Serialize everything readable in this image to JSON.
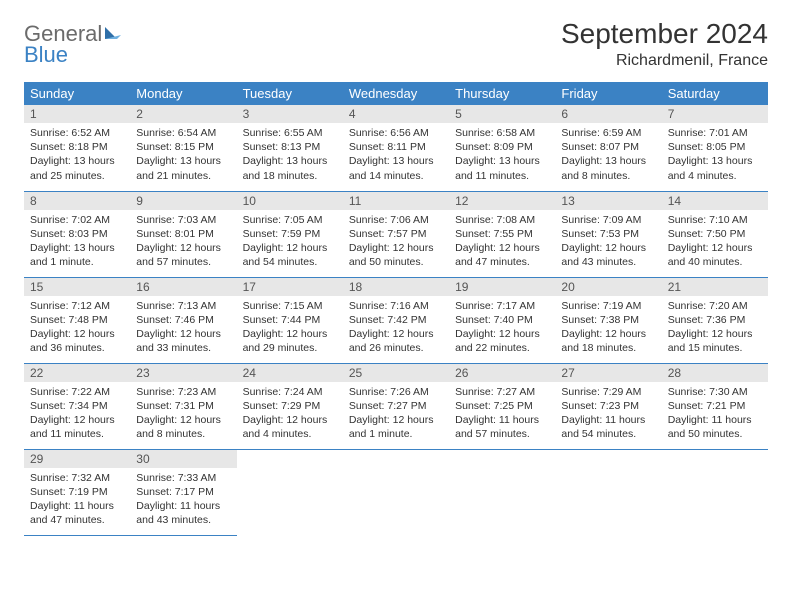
{
  "logo": {
    "word1": "General",
    "word2": "Blue"
  },
  "title": "September 2024",
  "location": "Richardmenil, France",
  "colors": {
    "header_bg": "#3b82c4",
    "header_text": "#ffffff",
    "daynum_bg": "#e7e7e7",
    "cell_border": "#3b82c4",
    "logo_gray": "#6b6b6b",
    "logo_blue": "#3b82c4"
  },
  "day_headers": [
    "Sunday",
    "Monday",
    "Tuesday",
    "Wednesday",
    "Thursday",
    "Friday",
    "Saturday"
  ],
  "weeks": [
    [
      {
        "n": "1",
        "sunrise": "Sunrise: 6:52 AM",
        "sunset": "Sunset: 8:18 PM",
        "daylight": "Daylight: 13 hours and 25 minutes."
      },
      {
        "n": "2",
        "sunrise": "Sunrise: 6:54 AM",
        "sunset": "Sunset: 8:15 PM",
        "daylight": "Daylight: 13 hours and 21 minutes."
      },
      {
        "n": "3",
        "sunrise": "Sunrise: 6:55 AM",
        "sunset": "Sunset: 8:13 PM",
        "daylight": "Daylight: 13 hours and 18 minutes."
      },
      {
        "n": "4",
        "sunrise": "Sunrise: 6:56 AM",
        "sunset": "Sunset: 8:11 PM",
        "daylight": "Daylight: 13 hours and 14 minutes."
      },
      {
        "n": "5",
        "sunrise": "Sunrise: 6:58 AM",
        "sunset": "Sunset: 8:09 PM",
        "daylight": "Daylight: 13 hours and 11 minutes."
      },
      {
        "n": "6",
        "sunrise": "Sunrise: 6:59 AM",
        "sunset": "Sunset: 8:07 PM",
        "daylight": "Daylight: 13 hours and 8 minutes."
      },
      {
        "n": "7",
        "sunrise": "Sunrise: 7:01 AM",
        "sunset": "Sunset: 8:05 PM",
        "daylight": "Daylight: 13 hours and 4 minutes."
      }
    ],
    [
      {
        "n": "8",
        "sunrise": "Sunrise: 7:02 AM",
        "sunset": "Sunset: 8:03 PM",
        "daylight": "Daylight: 13 hours and 1 minute."
      },
      {
        "n": "9",
        "sunrise": "Sunrise: 7:03 AM",
        "sunset": "Sunset: 8:01 PM",
        "daylight": "Daylight: 12 hours and 57 minutes."
      },
      {
        "n": "10",
        "sunrise": "Sunrise: 7:05 AM",
        "sunset": "Sunset: 7:59 PM",
        "daylight": "Daylight: 12 hours and 54 minutes."
      },
      {
        "n": "11",
        "sunrise": "Sunrise: 7:06 AM",
        "sunset": "Sunset: 7:57 PM",
        "daylight": "Daylight: 12 hours and 50 minutes."
      },
      {
        "n": "12",
        "sunrise": "Sunrise: 7:08 AM",
        "sunset": "Sunset: 7:55 PM",
        "daylight": "Daylight: 12 hours and 47 minutes."
      },
      {
        "n": "13",
        "sunrise": "Sunrise: 7:09 AM",
        "sunset": "Sunset: 7:53 PM",
        "daylight": "Daylight: 12 hours and 43 minutes."
      },
      {
        "n": "14",
        "sunrise": "Sunrise: 7:10 AM",
        "sunset": "Sunset: 7:50 PM",
        "daylight": "Daylight: 12 hours and 40 minutes."
      }
    ],
    [
      {
        "n": "15",
        "sunrise": "Sunrise: 7:12 AM",
        "sunset": "Sunset: 7:48 PM",
        "daylight": "Daylight: 12 hours and 36 minutes."
      },
      {
        "n": "16",
        "sunrise": "Sunrise: 7:13 AM",
        "sunset": "Sunset: 7:46 PM",
        "daylight": "Daylight: 12 hours and 33 minutes."
      },
      {
        "n": "17",
        "sunrise": "Sunrise: 7:15 AM",
        "sunset": "Sunset: 7:44 PM",
        "daylight": "Daylight: 12 hours and 29 minutes."
      },
      {
        "n": "18",
        "sunrise": "Sunrise: 7:16 AM",
        "sunset": "Sunset: 7:42 PM",
        "daylight": "Daylight: 12 hours and 26 minutes."
      },
      {
        "n": "19",
        "sunrise": "Sunrise: 7:17 AM",
        "sunset": "Sunset: 7:40 PM",
        "daylight": "Daylight: 12 hours and 22 minutes."
      },
      {
        "n": "20",
        "sunrise": "Sunrise: 7:19 AM",
        "sunset": "Sunset: 7:38 PM",
        "daylight": "Daylight: 12 hours and 18 minutes."
      },
      {
        "n": "21",
        "sunrise": "Sunrise: 7:20 AM",
        "sunset": "Sunset: 7:36 PM",
        "daylight": "Daylight: 12 hours and 15 minutes."
      }
    ],
    [
      {
        "n": "22",
        "sunrise": "Sunrise: 7:22 AM",
        "sunset": "Sunset: 7:34 PM",
        "daylight": "Daylight: 12 hours and 11 minutes."
      },
      {
        "n": "23",
        "sunrise": "Sunrise: 7:23 AM",
        "sunset": "Sunset: 7:31 PM",
        "daylight": "Daylight: 12 hours and 8 minutes."
      },
      {
        "n": "24",
        "sunrise": "Sunrise: 7:24 AM",
        "sunset": "Sunset: 7:29 PM",
        "daylight": "Daylight: 12 hours and 4 minutes."
      },
      {
        "n": "25",
        "sunrise": "Sunrise: 7:26 AM",
        "sunset": "Sunset: 7:27 PM",
        "daylight": "Daylight: 12 hours and 1 minute."
      },
      {
        "n": "26",
        "sunrise": "Sunrise: 7:27 AM",
        "sunset": "Sunset: 7:25 PM",
        "daylight": "Daylight: 11 hours and 57 minutes."
      },
      {
        "n": "27",
        "sunrise": "Sunrise: 7:29 AM",
        "sunset": "Sunset: 7:23 PM",
        "daylight": "Daylight: 11 hours and 54 minutes."
      },
      {
        "n": "28",
        "sunrise": "Sunrise: 7:30 AM",
        "sunset": "Sunset: 7:21 PM",
        "daylight": "Daylight: 11 hours and 50 minutes."
      }
    ],
    [
      {
        "n": "29",
        "sunrise": "Sunrise: 7:32 AM",
        "sunset": "Sunset: 7:19 PM",
        "daylight": "Daylight: 11 hours and 47 minutes."
      },
      {
        "n": "30",
        "sunrise": "Sunrise: 7:33 AM",
        "sunset": "Sunset: 7:17 PM",
        "daylight": "Daylight: 11 hours and 43 minutes."
      },
      null,
      null,
      null,
      null,
      null
    ]
  ]
}
